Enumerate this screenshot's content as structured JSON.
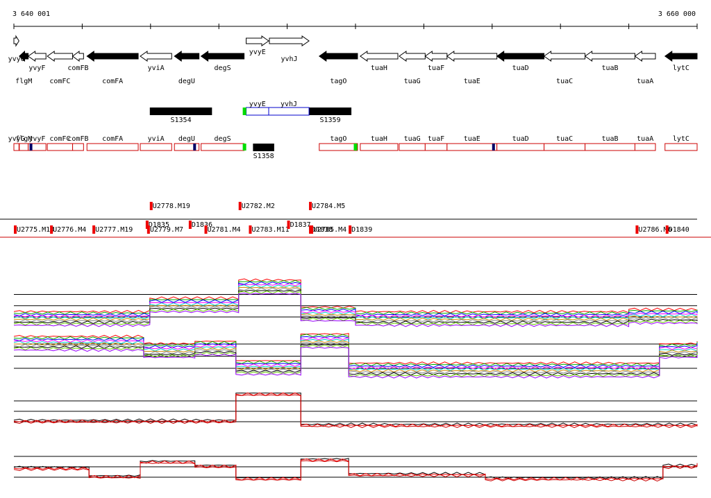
{
  "chart_data": {
    "type": "genome-browser",
    "coordinate_range": [
      3640001,
      3660000
    ],
    "ruler": {
      "start_label": "3 640 001",
      "end_label": "3 660 000"
    },
    "genes": [
      {
        "name": "yvyG",
        "start": 3640001,
        "end": 3640150,
        "strand": "+",
        "filled": false
      },
      {
        "name": "flgM",
        "start": 3640160,
        "end": 3640420,
        "strand": "-",
        "filled": true
      },
      {
        "name": "yvyF",
        "start": 3640420,
        "end": 3640940,
        "strand": "-",
        "filled": false
      },
      {
        "name": "comFC",
        "start": 3640980,
        "end": 3641720,
        "strand": "-",
        "filled": false
      },
      {
        "name": "comFB",
        "start": 3641720,
        "end": 3642040,
        "strand": "-",
        "filled": false
      },
      {
        "name": "comFA",
        "start": 3642140,
        "end": 3643640,
        "strand": "-",
        "filled": true
      },
      {
        "name": "yviA",
        "start": 3643700,
        "end": 3644620,
        "strand": "-",
        "filled": false
      },
      {
        "name": "degU",
        "start": 3644700,
        "end": 3645420,
        "strand": "-",
        "filled": true
      },
      {
        "name": "degS",
        "start": 3645480,
        "end": 3646740,
        "strand": "-",
        "filled": true
      },
      {
        "name": "yvyE",
        "start": 3646800,
        "end": 3647460,
        "strand": "+",
        "filled": false
      },
      {
        "name": "yvhJ",
        "start": 3647480,
        "end": 3648640,
        "strand": "+",
        "filled": false
      },
      {
        "name": "tagO",
        "start": 3648940,
        "end": 3650060,
        "strand": "-",
        "filled": true
      },
      {
        "name": "tuaH",
        "start": 3650140,
        "end": 3651240,
        "strand": "-",
        "filled": false
      },
      {
        "name": "tuaG",
        "start": 3651280,
        "end": 3652040,
        "strand": "-",
        "filled": false
      },
      {
        "name": "tuaF",
        "start": 3652040,
        "end": 3652680,
        "strand": "-",
        "filled": false
      },
      {
        "name": "tuaE",
        "start": 3652680,
        "end": 3654140,
        "strand": "-",
        "filled": false
      },
      {
        "name": "tuaD",
        "start": 3654140,
        "end": 3655520,
        "strand": "-",
        "filled": true
      },
      {
        "name": "tuaC",
        "start": 3655520,
        "end": 3656720,
        "strand": "-",
        "filled": false
      },
      {
        "name": "tuaB",
        "start": 3656720,
        "end": 3658180,
        "strand": "-",
        "filled": false
      },
      {
        "name": "tuaA",
        "start": 3658180,
        "end": 3658780,
        "strand": "-",
        "filled": false
      },
      {
        "name": "lytC",
        "start": 3659060,
        "end": 3660000,
        "strand": "-",
        "filled": true
      }
    ],
    "small_rnas": [
      {
        "name": "S1354",
        "start": 3643980,
        "end": 3645800,
        "style": "filled"
      },
      {
        "name": "S1359",
        "start": 3648640,
        "end": 3649880,
        "style": "filled"
      },
      {
        "name": "S1358",
        "start": 3647000,
        "end": 3647620,
        "style": "filled"
      },
      {
        "name": "yvyE",
        "start": 3646800,
        "end": 3647460,
        "style": "outline"
      },
      {
        "name": "yvhJ",
        "start": 3647460,
        "end": 3648640,
        "style": "outline"
      }
    ],
    "transcription_units": [
      "yvyG",
      "flgM",
      "yvyF",
      "comFC",
      "comFB",
      "comFA",
      "yviA",
      "degU",
      "degS",
      "tagO",
      "tuaH",
      "tuaG",
      "tuaF",
      "tuaE",
      "tuaD",
      "tuaC",
      "tuaB",
      "tuaA",
      "lytC"
    ],
    "segments": [
      {
        "label": "U2775.M10",
        "pos": 3640001,
        "row": 2
      },
      {
        "label": "U2776.M4",
        "pos": 3641060,
        "row": 2
      },
      {
        "label": "U2777.M19",
        "pos": 3642300,
        "row": 2
      },
      {
        "label": "D1835",
        "pos": 3643860,
        "row": 1
      },
      {
        "label": "U2779.M7",
        "pos": 3643900,
        "row": 2
      },
      {
        "label": "D1836",
        "pos": 3645120,
        "row": 1
      },
      {
        "label": "U2778.M19",
        "pos": 3643980,
        "row": 0
      },
      {
        "label": "U2781.M4",
        "pos": 3645580,
        "row": 2
      },
      {
        "label": "U2782.M2",
        "pos": 3646580,
        "row": 0
      },
      {
        "label": "U2783.M11",
        "pos": 3646880,
        "row": 2
      },
      {
        "label": "D1837",
        "pos": 3648000,
        "row": 1
      },
      {
        "label": "U2784.M5",
        "pos": 3648640,
        "row": 0
      },
      {
        "label": "D1838",
        "pos": 3648640,
        "row": 2
      },
      {
        "label": "U2785.M4",
        "pos": 3648680,
        "row": 2
      },
      {
        "label": "D1839",
        "pos": 3649800,
        "row": 2
      },
      {
        "label": "U2786.M6",
        "pos": 3658200,
        "row": 2
      },
      {
        "label": "D1840",
        "pos": 3659080,
        "row": 2
      }
    ],
    "expression_panels": [
      {
        "id": "panel1",
        "baseline_levels": [
          0.2,
          0.6,
          0.75,
          0.2,
          0.15,
          0.25,
          0.1
        ],
        "steps": [
          [
            3640001,
            0.15
          ],
          [
            3643980,
            0.45
          ],
          [
            3646580,
            0.85
          ],
          [
            3648400,
            0.25
          ],
          [
            3650000,
            0.15
          ],
          [
            3658000,
            0.2
          ],
          [
            3660000,
            0.18
          ]
        ]
      },
      {
        "id": "panel2",
        "steps": [
          [
            3640001,
            0.7
          ],
          [
            3643800,
            0.55
          ],
          [
            3645300,
            0.6
          ],
          [
            3646500,
            0.2
          ],
          [
            3648400,
            0.75
          ],
          [
            3649800,
            0.15
          ],
          [
            3658900,
            0.55
          ],
          [
            3660000,
            0.6
          ]
        ]
      },
      {
        "id": "panel3",
        "steps": [
          [
            3640001,
            0.2
          ],
          [
            3646500,
            0.85
          ],
          [
            3648400,
            0.1
          ],
          [
            3660000,
            0.1
          ]
        ]
      },
      {
        "id": "panel4",
        "steps": [
          [
            3640001,
            0.4
          ],
          [
            3642200,
            0.2
          ],
          [
            3643700,
            0.55
          ],
          [
            3645300,
            0.45
          ],
          [
            3646500,
            0.15
          ],
          [
            3648400,
            0.6
          ],
          [
            3649800,
            0.25
          ],
          [
            3653800,
            0.15
          ],
          [
            3659000,
            0.45
          ],
          [
            3660000,
            0.5
          ]
        ]
      }
    ]
  }
}
